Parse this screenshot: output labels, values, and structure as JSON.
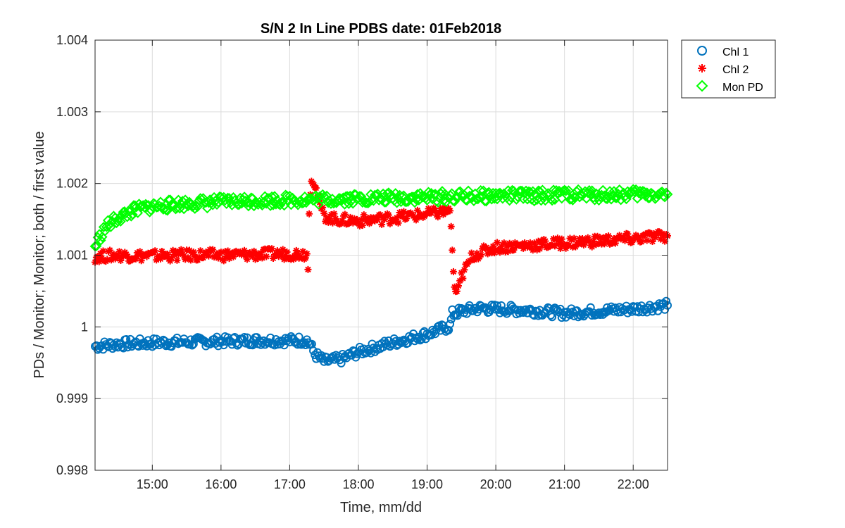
{
  "chart_data": {
    "type": "scatter",
    "title": "S/N 2 In Line PDBS date: 01Feb2018",
    "xlabel": "Time, mm/dd",
    "ylabel": "PDs / Monitor; Monitor; both / first value",
    "xlim": [
      "14:10",
      "22:30"
    ],
    "ylim": [
      0.998,
      1.004
    ],
    "xticks": [
      "15:00",
      "16:00",
      "17:00",
      "18:00",
      "19:00",
      "20:00",
      "21:00",
      "22:00"
    ],
    "yticks": [
      "0.998",
      "0.999",
      "1",
      "1.001",
      "1.002",
      "1.003",
      "1.004"
    ],
    "grid": true,
    "legend_position": "outside top-right",
    "series": [
      {
        "name": "Chl 1",
        "marker": "circle",
        "color": "#0072BD",
        "x": [
          "14:10",
          "14:30",
          "15:00",
          "15:30",
          "16:00",
          "16:30",
          "17:00",
          "17:15",
          "17:18",
          "17:22",
          "17:30",
          "17:45",
          "18:00",
          "18:30",
          "19:00",
          "19:20",
          "19:22",
          "19:30",
          "19:45",
          "20:00",
          "20:30",
          "21:00",
          "21:30",
          "22:00",
          "22:30"
        ],
        "y": [
          0.99973,
          0.99976,
          0.99978,
          0.99979,
          0.9998,
          0.99981,
          0.99981,
          0.99981,
          0.99975,
          0.99962,
          0.99952,
          0.99955,
          0.99965,
          0.99978,
          0.9999,
          1.00001,
          1.00018,
          1.00022,
          1.00026,
          1.00025,
          1.00023,
          1.00019,
          1.00022,
          1.00025,
          1.0003
        ]
      },
      {
        "name": "Chl 2",
        "marker": "asterisk",
        "color": "#FF0000",
        "x": [
          "14:10",
          "14:30",
          "15:00",
          "15:30",
          "16:00",
          "16:30",
          "17:00",
          "17:15",
          "17:16",
          "17:17",
          "17:19",
          "17:22",
          "17:25",
          "17:30",
          "17:40",
          "18:00",
          "18:30",
          "19:00",
          "19:20",
          "19:21",
          "19:22",
          "19:23",
          "19:24",
          "19:26",
          "19:30",
          "19:40",
          "20:00",
          "20:30",
          "21:00",
          "21:30",
          "22:00",
          "22:30"
        ],
        "y": [
          1.00098,
          1.001,
          1.00099,
          1.001,
          1.001,
          1.00101,
          1.00102,
          1.00102,
          1.0008,
          1.00157,
          1.00211,
          1.002,
          1.00175,
          1.00155,
          1.0015,
          1.00148,
          1.00152,
          1.00157,
          1.00162,
          1.0014,
          1.00107,
          1.00077,
          1.00057,
          1.00043,
          1.0007,
          1.001,
          1.00111,
          1.00114,
          1.00117,
          1.0012,
          1.00123,
          1.00127
        ]
      },
      {
        "name": "Mon PD",
        "marker": "diamond",
        "color": "#00FF00",
        "x": [
          "14:10",
          "14:15",
          "14:20",
          "14:30",
          "14:45",
          "15:00",
          "15:30",
          "16:00",
          "16:30",
          "17:00",
          "17:30",
          "18:00",
          "18:30",
          "19:00",
          "19:30",
          "20:00",
          "20:30",
          "21:00",
          "21:30",
          "22:00",
          "22:30"
        ],
        "y": [
          1.00112,
          1.00128,
          1.0014,
          1.00152,
          1.00163,
          1.00168,
          1.00172,
          1.00174,
          1.00176,
          1.00177,
          1.00178,
          1.00179,
          1.0018,
          1.00181,
          1.00182,
          1.00183,
          1.00183,
          1.00184,
          1.00184,
          1.00185,
          1.00185
        ]
      }
    ]
  }
}
